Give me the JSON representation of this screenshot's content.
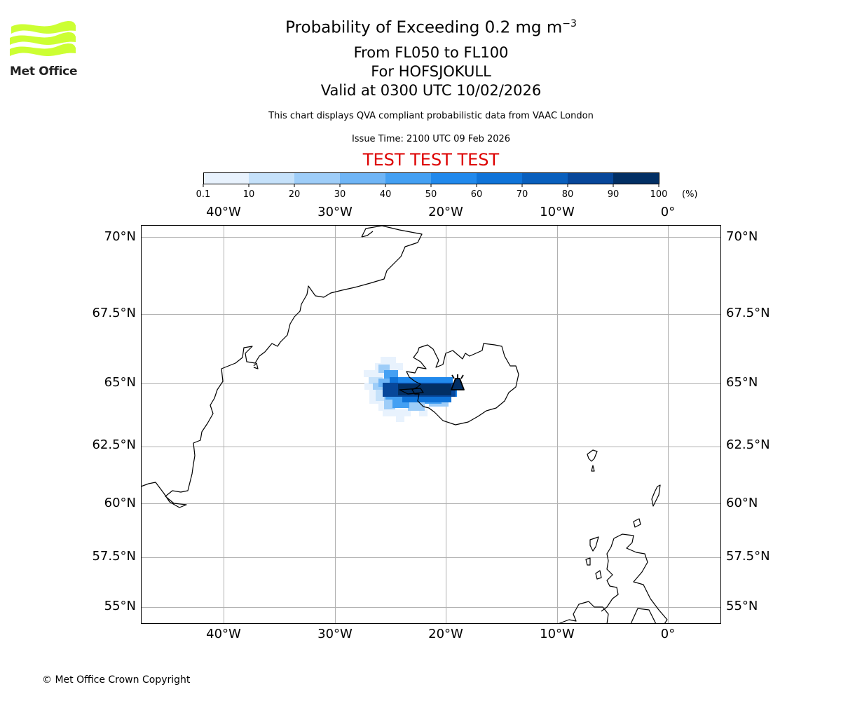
{
  "logo": {
    "text": "Met Office",
    "color": "#ccff33"
  },
  "title": {
    "pollutant": "Probability of Exceeding 0.2 mg m",
    "exponent": "−3",
    "levels": "From FL050 to FL100",
    "volcano": "For HOFSJOKULL",
    "valid": "Valid at 0300 UTC 10/02/2026"
  },
  "disclaimer": "This chart displays QVA compliant probabilistic data from VAAC London",
  "issue_time": "Issue Time: 2100 UTC 09 Feb 2026",
  "test_banner": "TEST TEST TEST",
  "colorbar": {
    "unit": "(%)",
    "ticks": [
      "0.1",
      "10",
      "20",
      "30",
      "40",
      "50",
      "60",
      "70",
      "80",
      "90",
      "100"
    ],
    "colors": [
      "#e8f2fd",
      "#c5e1fa",
      "#9ecdf8",
      "#6fb5f6",
      "#44a0f3",
      "#2189ec",
      "#0f73d8",
      "#095fbd",
      "#07479a",
      "#022f64"
    ]
  },
  "map": {
    "lon_labels": [
      "40°W",
      "30°W",
      "20°W",
      "10°W",
      "0°"
    ],
    "lat_labels": [
      "70°N",
      "67.5°N",
      "65°N",
      "62.5°N",
      "60°N",
      "57.5°N",
      "55°N"
    ],
    "volcano_marker": "volcano-icon"
  },
  "copyright": "© Met Office Crown Copyright"
}
